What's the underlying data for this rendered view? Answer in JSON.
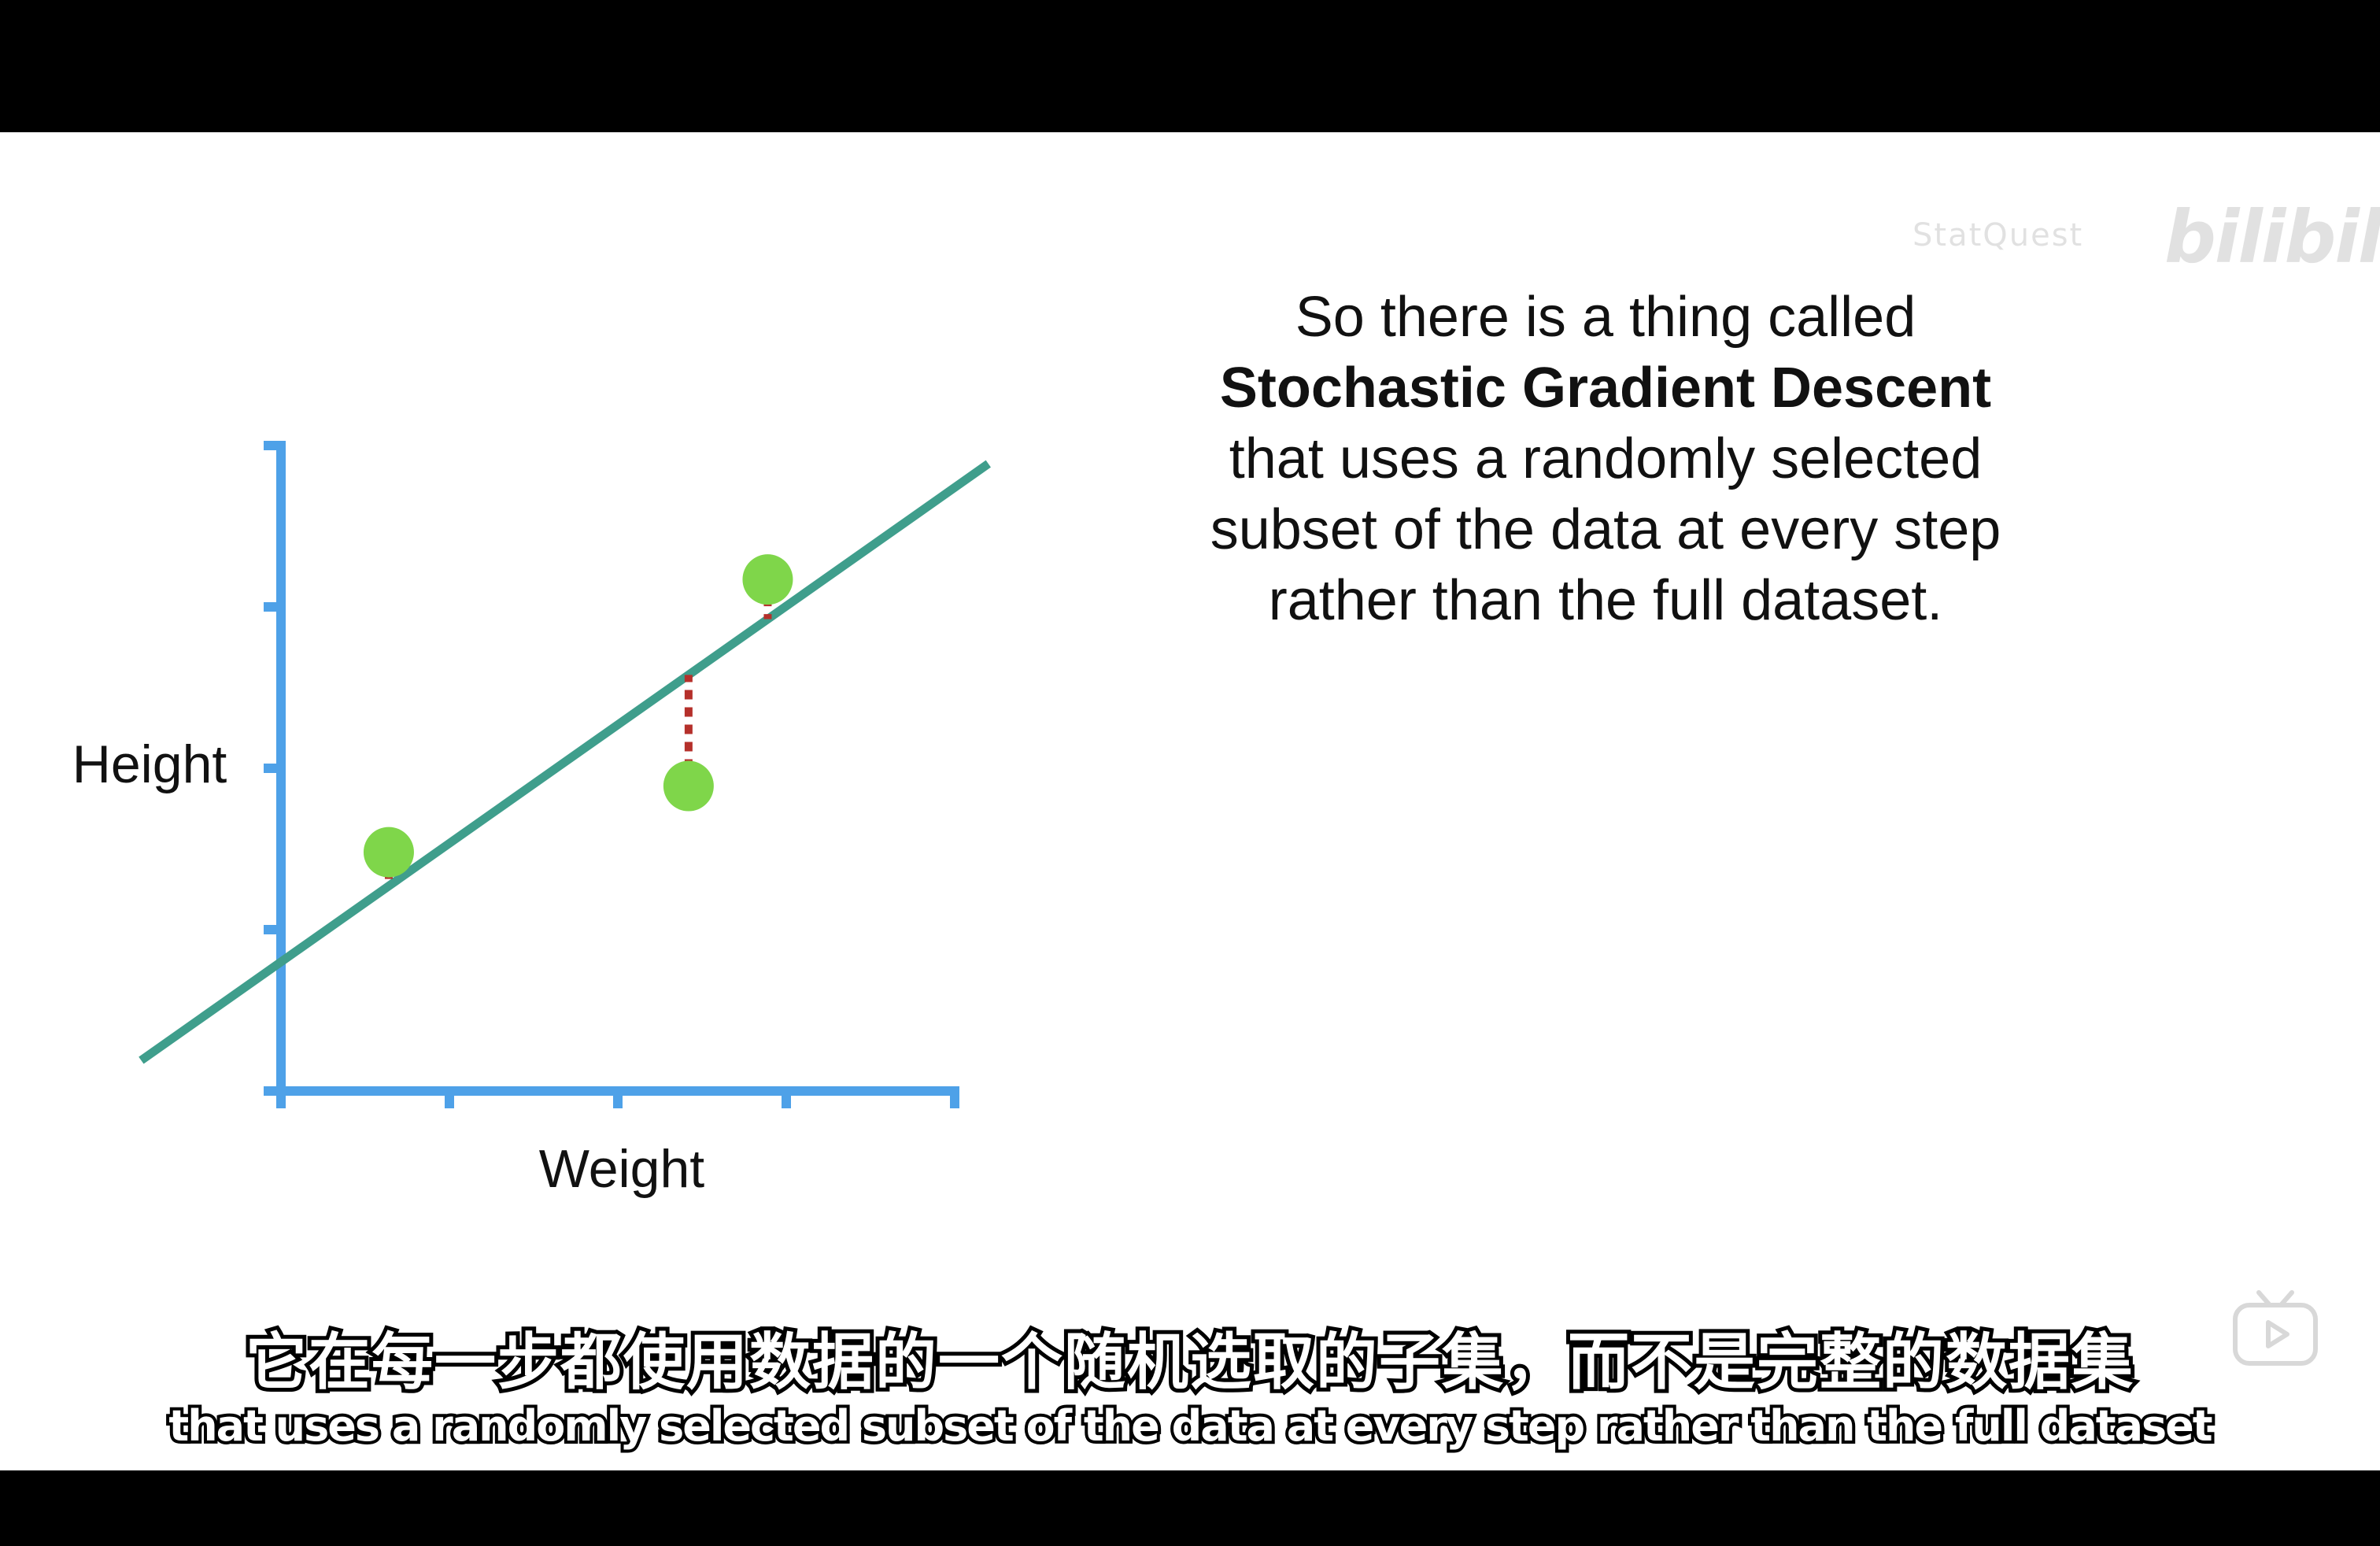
{
  "watermark": {
    "handle": "StatQuest",
    "logo": "bilibili"
  },
  "slide": {
    "text_lines": [
      {
        "text": "So there is a thing called",
        "bold": false
      },
      {
        "text": "Stochastic Gradient Descent",
        "bold": true
      },
      {
        "text": "that uses a randomly selected",
        "bold": false
      },
      {
        "text": "subset of the data at every step",
        "bold": false
      },
      {
        "text": "rather than the full dataset.",
        "bold": false
      }
    ]
  },
  "chart_data": {
    "type": "scatter",
    "xlabel": "Weight",
    "ylabel": "Height",
    "xlim": [
      0,
      4
    ],
    "ylim": [
      0,
      4
    ],
    "x_ticks": [
      0,
      1,
      2,
      3,
      4
    ],
    "y_ticks": [
      0,
      1,
      2,
      3,
      4
    ],
    "points": [
      {
        "x": 0.64,
        "y": 1.48
      },
      {
        "x": 2.42,
        "y": 1.89
      },
      {
        "x": 2.89,
        "y": 3.17
      }
    ],
    "fit_line": {
      "intercept": 0.8,
      "slope": 0.735,
      "x_start": -0.83,
      "x_end": 4.2
    },
    "residuals": true,
    "colors": {
      "axis": "#4ea1e8",
      "line": "#3f9e8c",
      "point": "#7fd64a",
      "residual": "#b5302b"
    }
  },
  "subtitles": {
    "zh": "它在每一步都使用数据的一个随机选取的子集，而不是完整的数据集",
    "en": "that uses a randomly selected subset of the data at every step rather than the full dataset"
  },
  "player": {
    "icon": "tv-play-icon"
  }
}
